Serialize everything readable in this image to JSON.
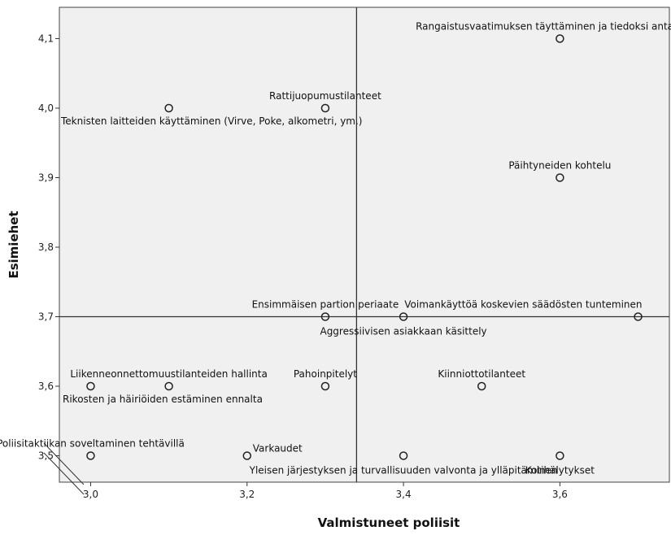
{
  "chart_data": {
    "type": "scatter",
    "xlabel": "Valmistuneet poliisit",
    "ylabel": "Esimiehet",
    "xlim": [
      2.96,
      3.74
    ],
    "ylim": [
      3.462,
      4.145
    ],
    "x_ticks": [
      3.0,
      3.2,
      3.4,
      3.6
    ],
    "x_tick_labels": [
      "3,0",
      "3,2",
      "3,4",
      "3,6"
    ],
    "y_ticks": [
      3.5,
      3.6,
      3.7,
      3.8,
      3.9,
      4.0,
      4.1
    ],
    "y_tick_labels": [
      "3,5",
      "3,6",
      "3,7",
      "3,8",
      "3,9",
      "4,0",
      "4,1"
    ],
    "reference_lines": {
      "x": 3.34,
      "y": 3.7
    },
    "grid": false,
    "points": [
      {
        "label": "Rangaistusvaatimuksen täyttäminen ja tiedoksi antaminen",
        "x": 3.6,
        "y": 4.1,
        "pos": "above"
      },
      {
        "label": "Rattijuopumustilanteet",
        "x": 3.3,
        "y": 4.0,
        "pos": "above"
      },
      {
        "label": "Teknisten laitteiden käyttäminen (Virve, Poke, alkometri, ym.)",
        "x": 3.1,
        "y": 4.0,
        "pos": "below-right"
      },
      {
        "label": "Päihtyneiden kohtelu",
        "x": 3.6,
        "y": 3.9,
        "pos": "above"
      },
      {
        "label": "Ensimmäisen partion periaate",
        "x": 3.3,
        "y": 3.7,
        "pos": "above"
      },
      {
        "label": "Voimankäyttöä koskevien säädösten tunteminen",
        "x": 3.7,
        "y": 3.7,
        "pos": "above-left"
      },
      {
        "label": "Aggressiivisen asiakkaan käsittely",
        "x": 3.4,
        "y": 3.7,
        "pos": "below"
      },
      {
        "label": "Liikenneonnettomuustilanteiden hallinta",
        "x": 3.1,
        "y": 3.6,
        "pos": "above"
      },
      {
        "label": "Pahoinpitelyt",
        "x": 3.3,
        "y": 3.6,
        "pos": "above"
      },
      {
        "label": "Kiinniottotilanteet",
        "x": 3.5,
        "y": 3.6,
        "pos": "above"
      },
      {
        "label": "Rikosten ja häiriöiden estäminen ennalta",
        "x": 3.0,
        "y": 3.6,
        "pos": "below-right"
      },
      {
        "label": "Poliisitaktiikan soveltaminen tehtävillä",
        "x": 3.0,
        "y": 3.5,
        "pos": "above"
      },
      {
        "label": "Varkaudet",
        "x": 3.2,
        "y": 3.5,
        "pos": "above-right"
      },
      {
        "label": "Yleisen järjestyksen ja turvallisuuden valvonta ja ylläpitäminen",
        "x": 3.4,
        "y": 3.5,
        "pos": "below"
      },
      {
        "label": "Kotihälytykset",
        "x": 3.6,
        "y": 3.5,
        "pos": "below"
      }
    ]
  }
}
